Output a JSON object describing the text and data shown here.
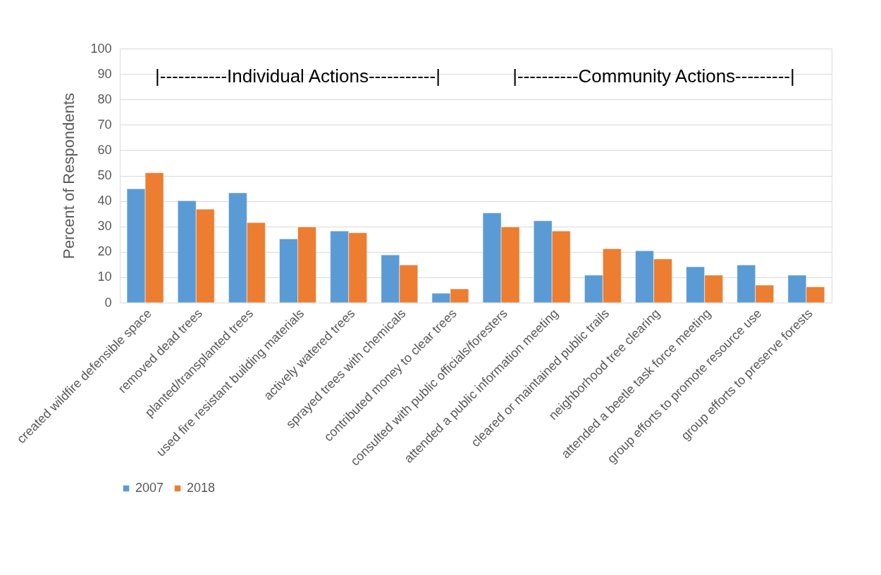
{
  "chart_data": {
    "type": "bar",
    "ylabel": "Percent of Respondents",
    "categories": [
      "created wildfire defensible space",
      "removed dead trees",
      "planted/transplanted trees",
      "used fire resistant building materials",
      "actively watered trees",
      "sprayed trees with chemicals",
      "contributed money to clear trees",
      "consulted with public officials/foresters",
      "attended a public information meeting",
      "cleared or maintained public trails",
      "neighborhood tree clearing",
      "attended a beetle task force meeting",
      "group efforts to promote resource use",
      "group efforts to preserve forests"
    ],
    "series": [
      {
        "name": "2007",
        "color": "#5b9bd5",
        "values": [
          44.8,
          40.1,
          43.2,
          25.1,
          28.2,
          18.8,
          3.7,
          35.3,
          32.2,
          10.8,
          20.4,
          14.1,
          14.8,
          10.8
        ]
      },
      {
        "name": "2018",
        "color": "#ed7d31",
        "values": [
          51.1,
          36.8,
          31.5,
          29.8,
          27.5,
          14.8,
          5.4,
          29.8,
          28.2,
          21.2,
          17.2,
          10.8,
          6.9,
          6.2
        ]
      }
    ],
    "annotations": [
      "|-----------Individual Actions-----------|",
      "|----------Community Actions---------|"
    ],
    "ylim": [
      0,
      100
    ],
    "yticks": [
      0,
      10,
      20,
      30,
      40,
      50,
      60,
      70,
      80,
      90,
      100
    ],
    "grid": "y",
    "legend": "bottom"
  }
}
